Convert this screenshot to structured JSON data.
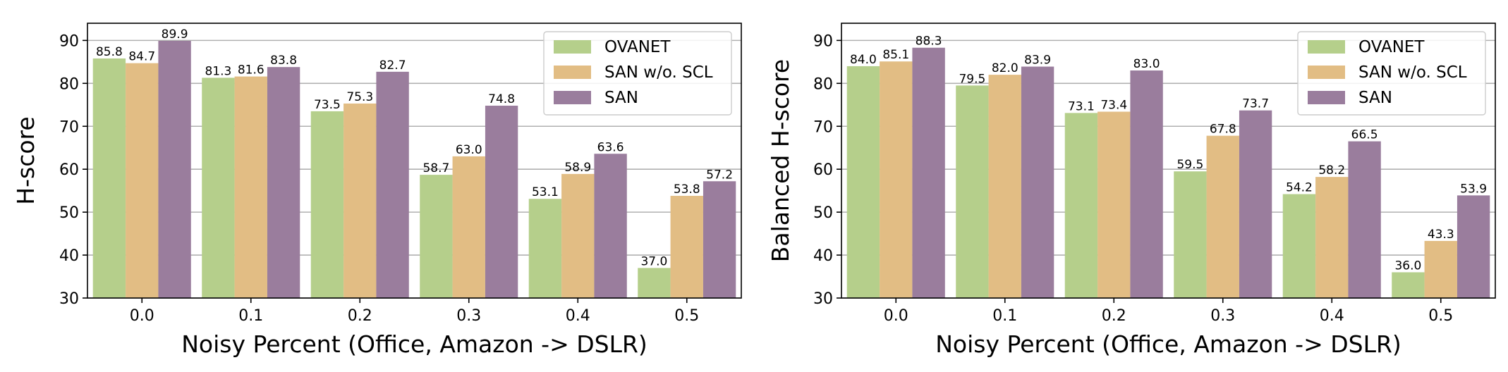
{
  "chart_data": [
    {
      "type": "bar",
      "title": "",
      "xlabel": "Noisy Percent (Office, Amazon -> DSLR)",
      "ylabel": "H-score",
      "ylim": [
        30,
        94
      ],
      "yticks": [
        "30",
        "40",
        "50",
        "60",
        "70",
        "80",
        "90"
      ],
      "categories": [
        "0.0",
        "0.1",
        "0.2",
        "0.3",
        "0.4",
        "0.5"
      ],
      "grid": "horizontal",
      "legend_position": "top-right",
      "series": [
        {
          "name": "OVANET",
          "color": "#b5cf8b",
          "values": [
            85.8,
            81.3,
            73.5,
            58.7,
            53.1,
            37.0
          ],
          "labels": [
            "85.8",
            "81.3",
            "73.5",
            "58.7",
            "53.1",
            "37.0"
          ]
        },
        {
          "name": "SAN w/o. SCL",
          "color": "#e2bd84",
          "values": [
            84.7,
            81.6,
            75.3,
            63.0,
            58.9,
            53.8
          ],
          "labels": [
            "84.7",
            "81.6",
            "75.3",
            "63.0",
            "58.9",
            "53.8"
          ]
        },
        {
          "name": "SAN",
          "color": "#9a7d9d",
          "values": [
            89.9,
            83.8,
            82.7,
            74.8,
            63.6,
            57.2
          ],
          "labels": [
            "89.9",
            "83.8",
            "82.7",
            "74.8",
            "63.6",
            "57.2"
          ]
        }
      ]
    },
    {
      "type": "bar",
      "title": "",
      "xlabel": "Noisy Percent (Office, Amazon -> DSLR)",
      "ylabel": "Balanced H-score",
      "ylim": [
        30,
        94
      ],
      "yticks": [
        "30",
        "40",
        "50",
        "60",
        "70",
        "80",
        "90"
      ],
      "categories": [
        "0.0",
        "0.1",
        "0.2",
        "0.3",
        "0.4",
        "0.5"
      ],
      "grid": "horizontal",
      "legend_position": "top-right",
      "series": [
        {
          "name": "OVANET",
          "color": "#b5cf8b",
          "values": [
            84.0,
            79.5,
            73.1,
            59.5,
            54.2,
            36.0
          ],
          "labels": [
            "84.0",
            "79.5",
            "73.1",
            "59.5",
            "54.2",
            "36.0"
          ]
        },
        {
          "name": "SAN w/o. SCL",
          "color": "#e2bd84",
          "values": [
            85.1,
            82.0,
            73.4,
            67.8,
            58.2,
            43.3
          ],
          "labels": [
            "85.1",
            "82.0",
            "73.4",
            "67.8",
            "58.2",
            "43.3"
          ]
        },
        {
          "name": "SAN",
          "color": "#9a7d9d",
          "values": [
            88.3,
            83.9,
            83.0,
            73.7,
            66.5,
            53.9
          ],
          "labels": [
            "88.3",
            "83.9",
            "83.0",
            "73.7",
            "66.5",
            "53.9"
          ]
        }
      ]
    }
  ]
}
